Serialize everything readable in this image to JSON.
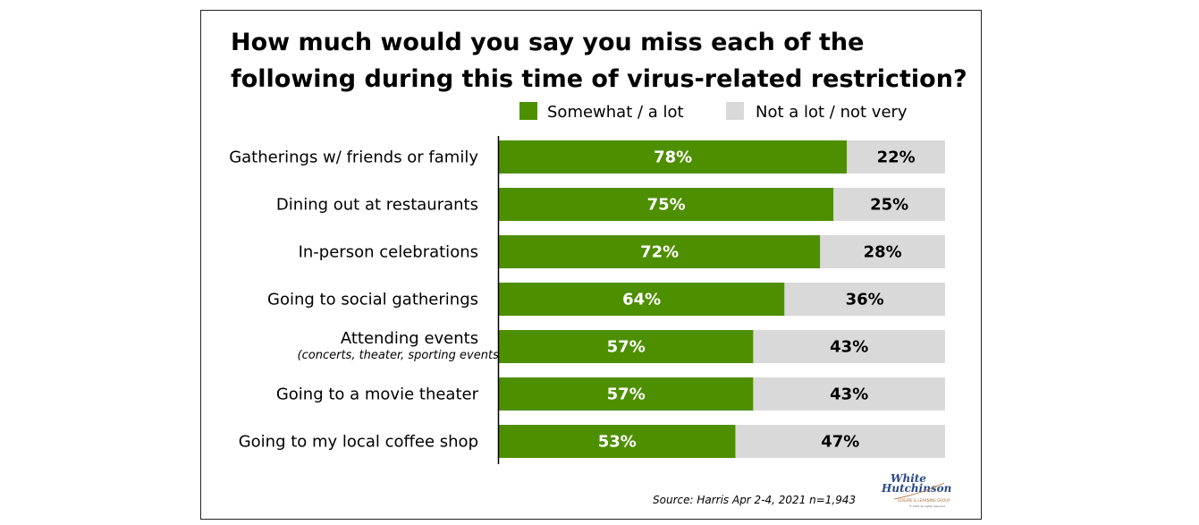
{
  "chart_data": {
    "type": "bar",
    "orientation": "horizontal",
    "stacked": true,
    "title": "How much would you say you miss each of the following during this time of virus-related restriction?",
    "title_lines": [
      "How much would you say you miss each of the",
      "following during this time of virus-related restriction?"
    ],
    "categories": [
      "Gatherings w/ friends or family",
      "Dining out at restaurants",
      "In-person celebrations",
      "Going to social gatherings",
      "Attending events",
      "Going to a movie theater",
      "Going to my local coffee shop"
    ],
    "category_notes": [
      "",
      "",
      "",
      "",
      "(concerts, theater, sporting events etc.)",
      "",
      ""
    ],
    "series": [
      {
        "name": "Somewhat / a lot",
        "color": "#4e8f00",
        "values": [
          78,
          75,
          72,
          64,
          57,
          57,
          53
        ],
        "labels": [
          "78%",
          "75%",
          "72%",
          "64%",
          "57%",
          "57%",
          "53%"
        ]
      },
      {
        "name": "Not a lot / not very",
        "color": "#d9d9d9",
        "values": [
          22,
          25,
          28,
          36,
          43,
          43,
          47
        ],
        "labels": [
          "22%",
          "25%",
          "28%",
          "36%",
          "43%",
          "43%",
          "47%"
        ]
      }
    ],
    "xlim": [
      0,
      100
    ],
    "legend_position": "top",
    "grid": false,
    "source": "Source: Harris Apr 2-4, 2021 n=1,943"
  },
  "logo": {
    "line1": "White",
    "line2": "Hutchinson",
    "tagline": "LEISURE & LEARNING GROUP",
    "copyright": "© 2021 all rights reserved"
  }
}
